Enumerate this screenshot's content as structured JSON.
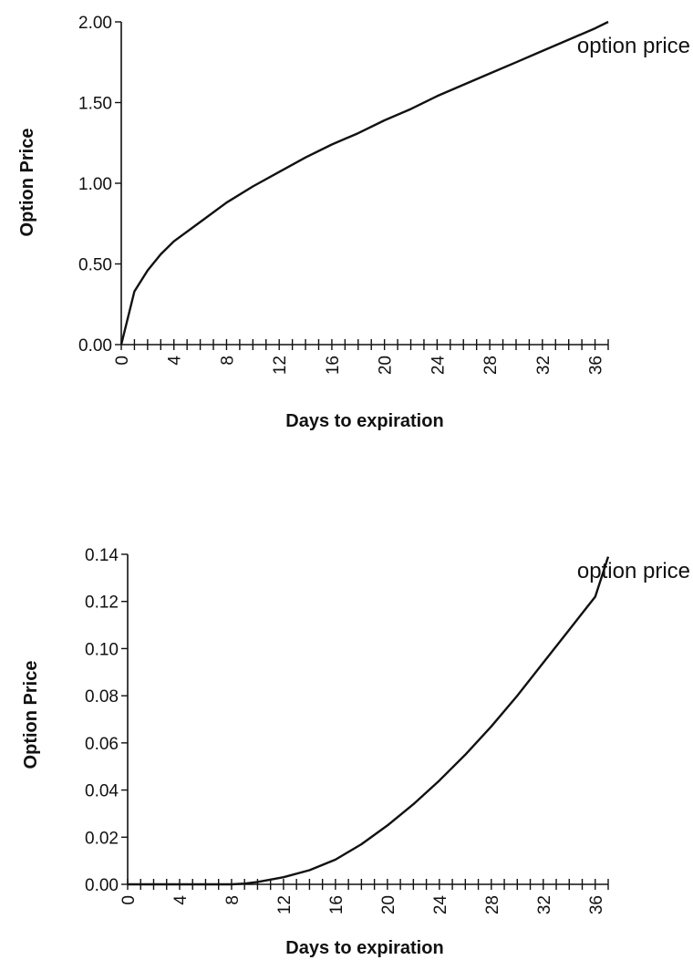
{
  "chart_data": [
    {
      "type": "line",
      "title": "",
      "xlabel": "Days to expiration",
      "ylabel": "Option Price",
      "xlim": [
        0,
        37
      ],
      "ylim": [
        0,
        2.0
      ],
      "x_tick_labels": [
        "0",
        "4",
        "8",
        "12",
        "16",
        "20",
        "24",
        "28",
        "32",
        "36"
      ],
      "y_tick_labels": [
        "0.00",
        "0.50",
        "1.00",
        "1.50",
        "2.00"
      ],
      "annotation": "option price",
      "grid": false,
      "series": [
        {
          "name": "option price",
          "x": [
            0,
            1,
            2,
            3,
            4,
            6,
            8,
            10,
            12,
            14,
            16,
            18,
            20,
            22,
            24,
            26,
            28,
            30,
            32,
            34,
            36,
            37
          ],
          "values": [
            0.0,
            0.33,
            0.46,
            0.56,
            0.64,
            0.76,
            0.88,
            0.98,
            1.07,
            1.16,
            1.24,
            1.31,
            1.39,
            1.46,
            1.54,
            1.61,
            1.68,
            1.75,
            1.82,
            1.89,
            1.96,
            2.0
          ]
        }
      ]
    },
    {
      "type": "line",
      "title": "",
      "xlabel": "Days to expiration",
      "ylabel": "Option Price",
      "xlim": [
        0,
        37
      ],
      "ylim": [
        0,
        0.14
      ],
      "x_tick_labels": [
        "0",
        "4",
        "8",
        "12",
        "16",
        "20",
        "24",
        "28",
        "32",
        "36"
      ],
      "y_tick_labels": [
        "0.00",
        "0.02",
        "0.04",
        "0.06",
        "0.08",
        "0.10",
        "0.12",
        "0.14"
      ],
      "annotation": "option price",
      "grid": false,
      "series": [
        {
          "name": "option price",
          "x": [
            0,
            2,
            4,
            6,
            8,
            9,
            10,
            11,
            12,
            14,
            16,
            18,
            20,
            22,
            24,
            26,
            28,
            30,
            32,
            34,
            36,
            37
          ],
          "values": [
            0.0,
            0.0,
            0.0,
            0.0,
            0.0,
            0.0003,
            0.001,
            0.002,
            0.003,
            0.006,
            0.0105,
            0.017,
            0.025,
            0.034,
            0.044,
            0.055,
            0.067,
            0.08,
            0.094,
            0.108,
            0.122,
            0.139
          ]
        }
      ]
    }
  ]
}
